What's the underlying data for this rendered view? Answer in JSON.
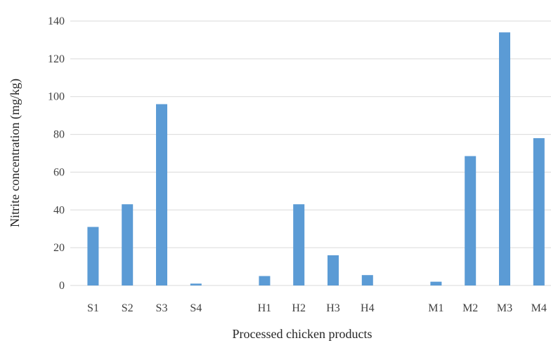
{
  "chart_data": {
    "type": "bar",
    "categories": [
      "S1",
      "S2",
      "S3",
      "S4",
      "",
      "H1",
      "H2",
      "H3",
      "H4",
      "",
      "M1",
      "M2",
      "M3",
      "M4"
    ],
    "series": [
      {
        "values": [
          31,
          43,
          96,
          1,
          null,
          5,
          43,
          16,
          5.5,
          null,
          2,
          68.5,
          134,
          78
        ],
        "color": "#5b9bd5"
      }
    ],
    "title": "",
    "xlabel": "Processed chicken products",
    "ylabel": "Nitrite  concentration (mg/kg)",
    "ylim": [
      0,
      140
    ],
    "yticks": [
      0,
      20,
      40,
      60,
      80,
      100,
      120,
      140
    ],
    "grid": true,
    "gridColor": "#d9d9d9",
    "legend": "none"
  }
}
